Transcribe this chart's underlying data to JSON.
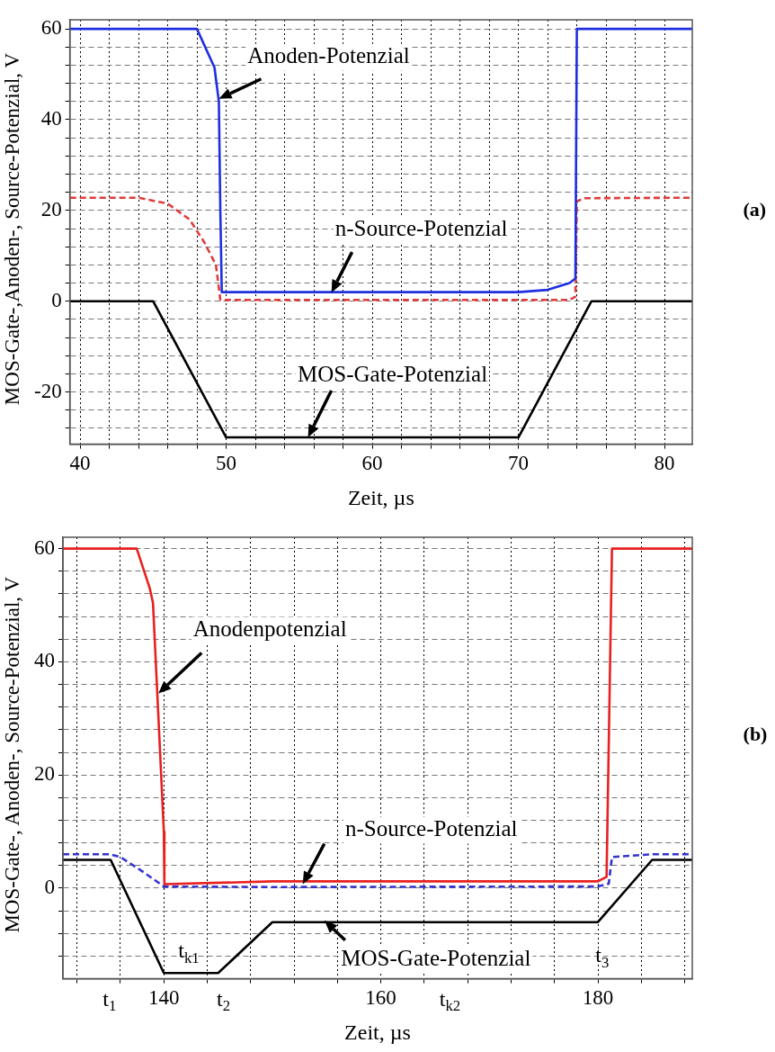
{
  "chart_data": [
    {
      "type": "line",
      "xlabel": "Zeit, µs",
      "ylabel": "MOS-Gate-,Anoden-, Source-Potenzial, V",
      "xlim": [
        39.3,
        81.9
      ],
      "ylim": [
        -31.5,
        62
      ],
      "xticks": [
        40,
        {
          "value": 42,
          "label": null
        },
        {
          "value": 44,
          "label": null
        },
        {
          "value": 46,
          "label": null
        },
        {
          "value": 48,
          "label": null
        },
        50,
        {
          "value": 52,
          "label": null
        },
        {
          "value": 54,
          "label": null
        },
        {
          "value": 56,
          "label": null
        },
        {
          "value": 58,
          "label": null
        },
        60,
        {
          "value": 62,
          "label": null
        },
        {
          "value": 64,
          "label": null
        },
        {
          "value": 66,
          "label": null
        },
        {
          "value": 68,
          "label": null
        },
        70,
        {
          "value": 72,
          "label": null
        },
        {
          "value": 74,
          "label": null
        },
        {
          "value": 76,
          "label": null
        },
        {
          "value": 78,
          "label": null
        },
        80
      ],
      "yticks": [
        {
          "value": -28,
          "label": null
        },
        {
          "value": -24,
          "label": null
        },
        -20,
        {
          "value": -16,
          "label": null
        },
        {
          "value": -12,
          "label": null
        },
        {
          "value": -8,
          "label": null
        },
        {
          "value": -4,
          "label": null
        },
        0,
        {
          "value": 4,
          "label": null
        },
        {
          "value": 8,
          "label": null
        },
        {
          "value": 12,
          "label": null
        },
        {
          "value": 16,
          "label": null
        },
        20,
        {
          "value": 24,
          "label": null
        },
        {
          "value": 28,
          "label": null
        },
        {
          "value": 32,
          "label": null
        },
        {
          "value": 36,
          "label": null
        },
        40,
        {
          "value": 44,
          "label": null
        },
        {
          "value": 48,
          "label": null
        },
        {
          "value": 52,
          "label": null
        },
        {
          "value": 56,
          "label": null
        },
        60
      ],
      "grid": true,
      "legend": false,
      "marker": "none",
      "series": [
        {
          "color": "#1f2fe0",
          "line_style": "solid",
          "x": [
            39.3,
            48,
            49.2,
            49.5,
            49.6,
            49.7,
            70,
            72,
            73.5,
            73.9,
            74,
            81.9
          ],
          "values": [
            60,
            60,
            51.5,
            44,
            20,
            2,
            2,
            2.5,
            4,
            5,
            60,
            60
          ]
        },
        {
          "color": "#e03c3c",
          "line_style": "dashed",
          "x": [
            39.3,
            44,
            46,
            47.5,
            48.5,
            49.3,
            49.6,
            73.5,
            73.9,
            74,
            74.5,
            81.9
          ],
          "values": [
            22.8,
            22.8,
            21.5,
            18,
            13,
            8,
            0.3,
            0.3,
            1,
            22,
            22.7,
            22.8
          ]
        },
        {
          "color": "#000000",
          "line_style": "solid",
          "x": [
            39.3,
            45,
            50,
            70,
            75,
            81.9
          ],
          "values": [
            0,
            0,
            -30,
            -30,
            0,
            0
          ]
        }
      ],
      "annotations": [
        {
          "text": "Anoden-Potenzial",
          "x": 49.5,
          "y": 44.6
        },
        {
          "text": "n-Source-Potenzial",
          "x": 57.2,
          "y": 1.9
        },
        {
          "text": "MOS-Gate-Potenzial",
          "x": 55.6,
          "y": -30
        },
        "(a)"
      ]
    },
    {
      "type": "line",
      "xlabel": "Zeit, µs",
      "ylabel": "MOS-Gate-, Anoden-, Source-Potenzial, V",
      "xlim": [
        130.7,
        188.7
      ],
      "ylim": [
        -16,
        62
      ],
      "xticks": [
        {
          "value": 132,
          "label": null
        },
        {
          "value": 136,
          "label": null
        },
        140,
        {
          "value": 144,
          "label": null
        },
        {
          "value": 148,
          "label": null
        },
        {
          "value": 152,
          "label": null
        },
        {
          "value": 156,
          "label": null
        },
        160,
        {
          "value": 164,
          "label": null
        },
        {
          "value": 168,
          "label": null
        },
        {
          "value": 172,
          "label": null
        },
        {
          "value": 176,
          "label": null
        },
        180,
        {
          "value": 184,
          "label": null
        },
        {
          "value": 188,
          "label": null
        }
      ],
      "yticks": [
        {
          "value": -12,
          "label": null
        },
        {
          "value": -8,
          "label": null
        },
        {
          "value": -4,
          "label": null
        },
        0,
        {
          "value": 4,
          "label": null
        },
        {
          "value": 8,
          "label": null
        },
        {
          "value": 12,
          "label": null
        },
        {
          "value": 16,
          "label": null
        },
        20,
        {
          "value": 24,
          "label": null
        },
        {
          "value": 28,
          "label": null
        },
        {
          "value": 32,
          "label": null
        },
        {
          "value": 36,
          "label": null
        },
        40,
        {
          "value": 44,
          "label": null
        },
        {
          "value": 48,
          "label": null
        },
        {
          "value": 52,
          "label": null
        },
        {
          "value": 56,
          "label": null
        },
        60
      ],
      "grid": true,
      "legend": false,
      "marker": "none",
      "series": [
        {
          "color": "#e82020",
          "line_style": "solid",
          "x": [
            130.7,
            137.5,
            138.7,
            139,
            140,
            140.05,
            150,
            180,
            180.8,
            181.3,
            188.7
          ],
          "values": [
            60,
            60,
            53,
            50.4,
            10,
            0.7,
            1.2,
            1.2,
            2,
            60,
            60
          ]
        },
        {
          "color": "#3333cc",
          "line_style": "dashed",
          "x": [
            130.7,
            135,
            136,
            138,
            140,
            150,
            180,
            181,
            181.3,
            185,
            188.7
          ],
          "values": [
            6,
            6,
            5.5,
            3,
            0.3,
            0.2,
            0.3,
            0.8,
            5.5,
            6,
            6
          ]
        },
        {
          "color": "#000000",
          "line_style": "solid",
          "x": [
            130.7,
            135.1,
            140,
            145,
            150,
            180,
            185,
            188.7
          ],
          "values": [
            5,
            5,
            -15,
            -15,
            -6,
            -6,
            5,
            5
          ]
        }
      ],
      "annotations": [
        {
          "text": "Anodenpotenzial",
          "x": 139.5,
          "y": 34.4
        },
        {
          "text": "n-Source-Potenzial",
          "x": 152.8,
          "y": 0.7
        },
        {
          "text": "MOS-Gate-Potenzial",
          "x": 154.8,
          "y": -5.7
        },
        "t$_{1}$",
        "t$_{k1}$",
        "t$_{2}$",
        "t$_{k2}$",
        "t$_{3}$",
        "(b)"
      ]
    }
  ]
}
